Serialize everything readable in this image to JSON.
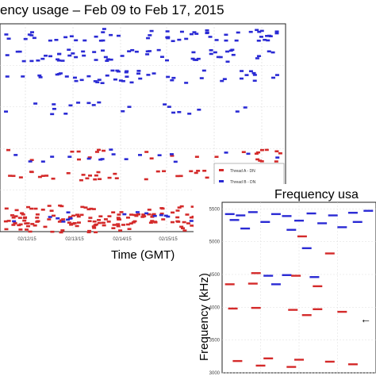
{
  "chart_data": [
    {
      "type": "scatter",
      "title": "ency usage  – Feb 09 to Feb 17, 2015",
      "xlabel": "Time (GMT)",
      "ylabel": "",
      "x_tick_labels": [
        "02/12/15",
        "02/13/15",
        "02/14/15",
        "02/15/15"
      ],
      "legend": {
        "placement": "bottom-right",
        "entries": [
          "Thread A - DN",
          "Thread B - DN"
        ]
      },
      "series_colors": {
        "Thread A - DN": "#d42a2a",
        "Thread B - DN": "#2a2ad4"
      },
      "grid": true,
      "series": [
        {
          "name": "Thread A - DN",
          "bands": [
            {
              "level": 0.37,
              "density": 0.35
            },
            {
              "level": 0.27,
              "density": 0.55
            },
            {
              "level": 0.1,
              "density": 1.0
            },
            {
              "level": 0.06,
              "density": 1.0
            },
            {
              "level": 0.03,
              "density": 0.9
            }
          ]
        },
        {
          "name": "Thread B - DN",
          "bands": [
            {
              "level": 0.95,
              "density": 0.8
            },
            {
              "level": 0.85,
              "density": 0.8
            },
            {
              "level": 0.75,
              "density": 0.7
            },
            {
              "level": 0.6,
              "density": 0.3
            },
            {
              "level": 0.37,
              "density": 0.25
            },
            {
              "level": 0.07,
              "density": 0.3
            }
          ]
        }
      ]
    },
    {
      "type": "scatter",
      "title": "Frequency usa",
      "ylabel": "Frequency (kHz)",
      "y_tick_labels": [
        "5500",
        "5000",
        "4500",
        "4000",
        "3500",
        "3000"
      ],
      "ylim": [
        3000,
        5600
      ],
      "series_colors": {
        "red": "#d42a2a",
        "blue": "#2a2ad4"
      },
      "annotation": "←",
      "series": [
        {
          "name": "",
          "color": "blue",
          "points": [
            [
              0.05,
              5420
            ],
            [
              0.12,
              5400
            ],
            [
              0.2,
              5450
            ],
            [
              0.35,
              5420
            ],
            [
              0.42,
              5390
            ],
            [
              0.58,
              5430
            ],
            [
              0.72,
              5400
            ],
            [
              0.85,
              5440
            ],
            [
              0.95,
              5470
            ],
            [
              0.08,
              5330
            ],
            [
              0.28,
              5300
            ],
            [
              0.5,
              5320
            ],
            [
              0.65,
              5280
            ],
            [
              0.88,
              5300
            ],
            [
              0.15,
              5200
            ],
            [
              0.45,
              5180
            ],
            [
              0.78,
              5220
            ],
            [
              0.55,
              4900
            ],
            [
              0.3,
              4480
            ],
            [
              0.42,
              4490
            ],
            [
              0.6,
              4460
            ],
            [
              0.35,
              4350
            ]
          ]
        },
        {
          "name": "",
          "color": "red",
          "points": [
            [
              0.52,
              5080
            ],
            [
              0.7,
              4820
            ],
            [
              0.22,
              4520
            ],
            [
              0.48,
              4480
            ],
            [
              0.05,
              4350
            ],
            [
              0.2,
              4360
            ],
            [
              0.62,
              4320
            ],
            [
              0.07,
              3980
            ],
            [
              0.22,
              3990
            ],
            [
              0.46,
              3960
            ],
            [
              0.62,
              3970
            ],
            [
              0.78,
              3930
            ],
            [
              0.55,
              3880
            ],
            [
              0.1,
              3180
            ],
            [
              0.3,
              3220
            ],
            [
              0.5,
              3200
            ],
            [
              0.7,
              3170
            ],
            [
              0.25,
              3110
            ],
            [
              0.45,
              3090
            ],
            [
              0.85,
              3130
            ]
          ]
        }
      ]
    }
  ]
}
